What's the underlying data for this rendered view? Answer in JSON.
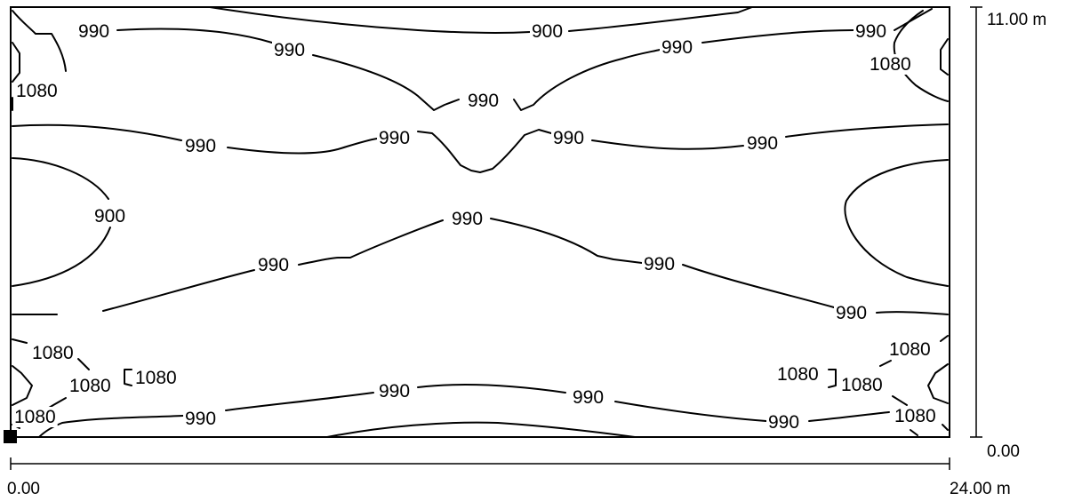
{
  "chart_data": {
    "type": "contour",
    "x_range": [
      0,
      24
    ],
    "y_range": [
      0,
      11
    ],
    "x_axis": {
      "start_label": "0.00",
      "end_label": "24.00 m"
    },
    "y_axis": {
      "start_label": "0.00",
      "end_label": "11.00 m"
    },
    "contour_levels": [
      "900",
      "990",
      "1080"
    ],
    "labels": [
      "990",
      "900",
      "990",
      "990",
      "1080",
      "1080",
      "990",
      "990",
      "990",
      "990",
      "990",
      "990",
      "900",
      "990",
      "990",
      "990",
      "990",
      "1080",
      "1080",
      "1080",
      "1080",
      "1080",
      "1080",
      "990",
      "990",
      "990",
      "990",
      "1080",
      "1080"
    ]
  }
}
